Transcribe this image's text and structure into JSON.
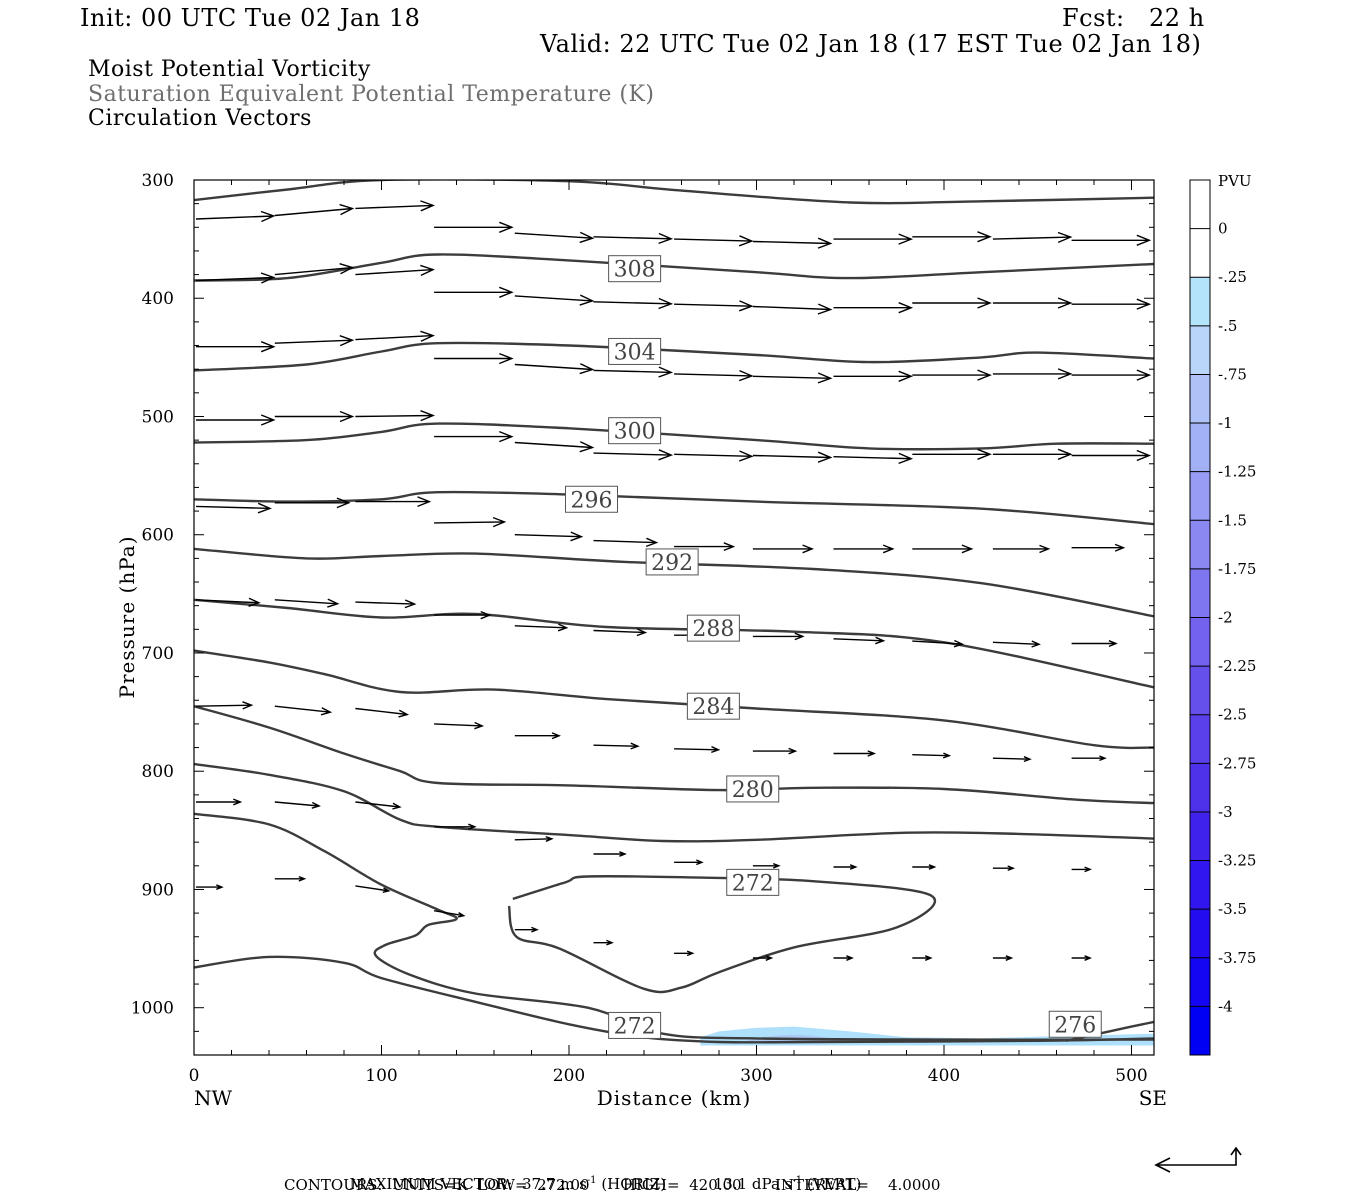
{
  "header": {
    "init": "Init: 00 UTC Tue 02 Jan 18",
    "fcst": "Fcst:   22 h",
    "valid": "Valid: 22 UTC Tue 02 Jan 18 (17 EST Tue 02 Jan 18)"
  },
  "fields": {
    "field1": "Moist Potential Vorticity",
    "field2": "Saturation Equivalent Potential Temperature (K)",
    "field3": "Circulation Vectors"
  },
  "footer": {
    "max_vector_label": "MAXIMUM VECTOR:",
    "max_vector_horiz": "37.7 m s",
    "horiz_note": "(HORIZ)",
    "max_vector_vert": "13.1 dPa s",
    "vert_note": "(VERT)",
    "exp": "-1",
    "contours": "CONTOURS:  UNITS=K  LOW=  272.00       HIGH=  420.00       INTERVAL=    4.0000"
  },
  "colors": {
    "contour": "#3c3c3c",
    "vector": "#000000",
    "pv_shade": "#aee0fb",
    "pv_shade_deep": "#a8b8f0"
  },
  "chart_data": {
    "type": "contour",
    "xlabel": "Distance (km)",
    "ylabel": "Pressure (hPa)",
    "xlim": [
      0,
      512
    ],
    "ylim": [
      1040,
      300
    ],
    "x_ticks": [
      0,
      100,
      200,
      300,
      400,
      500
    ],
    "y_ticks": [
      300,
      400,
      500,
      600,
      700,
      800,
      900,
      1000
    ],
    "x_end_labels": {
      "left": "NW",
      "right": "SE"
    },
    "contour_labels": [
      {
        "value": "308",
        "x": 235,
        "p": 375
      },
      {
        "value": "304",
        "x": 235,
        "p": 445
      },
      {
        "value": "300",
        "x": 235,
        "p": 512
      },
      {
        "value": "296",
        "x": 212,
        "p": 570
      },
      {
        "value": "292",
        "x": 255,
        "p": 623
      },
      {
        "value": "288",
        "x": 277,
        "p": 679
      },
      {
        "value": "284",
        "x": 277,
        "p": 745
      },
      {
        "value": "280",
        "x": 298,
        "p": 815
      },
      {
        "value": "272",
        "x": 298,
        "p": 894
      },
      {
        "value": "272",
        "x": 235,
        "p": 1015
      },
      {
        "value": "276",
        "x": 470,
        "p": 1014
      }
    ],
    "contours": [
      [
        [
          0,
          317
        ],
        [
          50,
          308
        ],
        [
          100,
          300
        ],
        [
          200,
          301
        ],
        [
          260,
          309
        ],
        [
          350,
          319
        ],
        [
          420,
          318
        ],
        [
          512,
          315
        ]
      ],
      [
        [
          0,
          385
        ],
        [
          50,
          383
        ],
        [
          100,
          370
        ],
        [
          130,
          363
        ],
        [
          200,
          368
        ],
        [
          300,
          378
        ],
        [
          350,
          383
        ],
        [
          420,
          378
        ],
        [
          512,
          371
        ]
      ],
      [
        [
          0,
          461
        ],
        [
          60,
          456
        ],
        [
          100,
          445
        ],
        [
          130,
          438
        ],
        [
          200,
          440
        ],
        [
          300,
          448
        ],
        [
          360,
          454
        ],
        [
          420,
          450
        ],
        [
          450,
          446
        ],
        [
          512,
          451
        ]
      ],
      [
        [
          0,
          522
        ],
        [
          60,
          520
        ],
        [
          100,
          513
        ],
        [
          130,
          506
        ],
        [
          200,
          510
        ],
        [
          300,
          520
        ],
        [
          360,
          527
        ],
        [
          420,
          527
        ],
        [
          460,
          523
        ],
        [
          512,
          523
        ]
      ],
      [
        [
          0,
          570
        ],
        [
          50,
          572
        ],
        [
          100,
          570
        ],
        [
          130,
          564
        ],
        [
          200,
          566
        ],
        [
          300,
          572
        ],
        [
          420,
          578
        ],
        [
          512,
          591
        ]
      ],
      [
        [
          0,
          612
        ],
        [
          60,
          620
        ],
        [
          100,
          618
        ],
        [
          150,
          616
        ],
        [
          230,
          623
        ],
        [
          330,
          629
        ],
        [
          420,
          641
        ],
        [
          512,
          669
        ]
      ],
      [
        [
          0,
          655
        ],
        [
          50,
          662
        ],
        [
          100,
          670
        ],
        [
          150,
          667
        ],
        [
          220,
          678
        ],
        [
          320,
          682
        ],
        [
          400,
          691
        ],
        [
          512,
          729
        ]
      ],
      [
        [
          0,
          698
        ],
        [
          40,
          708
        ],
        [
          70,
          718
        ],
        [
          110,
          733
        ],
        [
          160,
          731
        ],
        [
          220,
          739
        ],
        [
          300,
          747
        ],
        [
          400,
          757
        ],
        [
          480,
          778
        ],
        [
          512,
          780
        ]
      ],
      [
        [
          0,
          745
        ],
        [
          40,
          763
        ],
        [
          80,
          785
        ],
        [
          110,
          800
        ],
        [
          130,
          810
        ],
        [
          200,
          812
        ],
        [
          280,
          816
        ],
        [
          330,
          814
        ],
        [
          400,
          815
        ],
        [
          470,
          824
        ],
        [
          512,
          827
        ]
      ],
      [
        [
          0,
          794
        ],
        [
          40,
          803
        ],
        [
          80,
          817
        ],
        [
          110,
          841
        ],
        [
          130,
          847
        ],
        [
          200,
          854
        ],
        [
          250,
          859
        ],
        [
          300,
          858
        ],
        [
          380,
          852
        ],
        [
          440,
          853
        ],
        [
          512,
          857
        ]
      ],
      [
        [
          0,
          836
        ],
        [
          40,
          845
        ],
        [
          70,
          868
        ],
        [
          100,
          896
        ],
        [
          130,
          917
        ],
        [
          140,
          925
        ],
        [
          125,
          930
        ],
        [
          118,
          939
        ],
        [
          102,
          947
        ],
        [
          97,
          956
        ],
        [
          115,
          972
        ],
        [
          150,
          988
        ],
        [
          210,
          1000
        ],
        [
          250,
          1022
        ],
        [
          300,
          1026
        ],
        [
          400,
          1027
        ],
        [
          512,
          1027
        ]
      ],
      [
        [
          170,
          908
        ],
        [
          198,
          894
        ],
        [
          210,
          889
        ],
        [
          270,
          890
        ],
        [
          330,
          893
        ],
        [
          393,
          905
        ],
        [
          375,
          932
        ],
        [
          320,
          949
        ],
        [
          280,
          970
        ],
        [
          260,
          983
        ],
        [
          240,
          984
        ],
        [
          195,
          950
        ],
        [
          172,
          940
        ],
        [
          168,
          914
        ]
      ],
      [
        [
          0,
          966
        ],
        [
          40,
          957
        ],
        [
          80,
          962
        ],
        [
          100,
          975
        ],
        [
          150,
          995
        ],
        [
          200,
          1014
        ],
        [
          240,
          1025
        ],
        [
          280,
          1029
        ],
        [
          330,
          1029
        ],
        [
          450,
          1028
        ],
        [
          512,
          1026
        ]
      ],
      [
        [
          465,
          1028
        ],
        [
          500,
          1016
        ],
        [
          512,
          1012
        ]
      ]
    ],
    "pv_shading": [
      {
        "range": "-0.25 to -0.5",
        "x": [
          270,
          280,
          300,
          320,
          350,
          380,
          420,
          460,
          512
        ],
        "p_top": [
          1025,
          1020,
          1017,
          1016,
          1020,
          1025,
          1026,
          1024,
          1022
        ],
        "p_bottom": 1032
      }
    ],
    "vectors": [
      {
        "x": 0,
        "p": 333,
        "u": 42,
        "w": -3
      },
      {
        "x": 42,
        "p": 330,
        "u": 42,
        "w": -7
      },
      {
        "x": 85,
        "p": 324,
        "u": 42,
        "w": -3
      },
      {
        "x": 127,
        "p": 340,
        "u": 42,
        "w": 0
      },
      {
        "x": 170,
        "p": 345,
        "u": 42,
        "w": 5
      },
      {
        "x": 212,
        "p": 348,
        "u": 42,
        "w": 2
      },
      {
        "x": 255,
        "p": 350,
        "u": 42,
        "w": 2
      },
      {
        "x": 297,
        "p": 352,
        "u": 42,
        "w": 2
      },
      {
        "x": 340,
        "p": 350,
        "u": 42,
        "w": 0
      },
      {
        "x": 382,
        "p": 348,
        "u": 42,
        "w": 0
      },
      {
        "x": 425,
        "p": 350,
        "u": 42,
        "w": -2
      },
      {
        "x": 467,
        "p": 351,
        "u": 42,
        "w": 0
      },
      {
        "x": 0,
        "p": 385,
        "u": 42,
        "w": -3
      },
      {
        "x": 42,
        "p": 380,
        "u": 42,
        "w": -7
      },
      {
        "x": 85,
        "p": 380,
        "u": 42,
        "w": -5
      },
      {
        "x": 127,
        "p": 395,
        "u": 42,
        "w": 0
      },
      {
        "x": 170,
        "p": 398,
        "u": 42,
        "w": 5
      },
      {
        "x": 212,
        "p": 403,
        "u": 42,
        "w": 2
      },
      {
        "x": 255,
        "p": 405,
        "u": 42,
        "w": 2
      },
      {
        "x": 297,
        "p": 407,
        "u": 42,
        "w": 3
      },
      {
        "x": 340,
        "p": 408,
        "u": 42,
        "w": 0
      },
      {
        "x": 382,
        "p": 404,
        "u": 42,
        "w": 0
      },
      {
        "x": 425,
        "p": 404,
        "u": 42,
        "w": 0
      },
      {
        "x": 467,
        "p": 405,
        "u": 42,
        "w": 0
      },
      {
        "x": 0,
        "p": 441,
        "u": 42,
        "w": 0
      },
      {
        "x": 42,
        "p": 438,
        "u": 42,
        "w": -3
      },
      {
        "x": 85,
        "p": 435,
        "u": 42,
        "w": -4
      },
      {
        "x": 127,
        "p": 451,
        "u": 42,
        "w": 0
      },
      {
        "x": 170,
        "p": 456,
        "u": 42,
        "w": 5
      },
      {
        "x": 212,
        "p": 461,
        "u": 42,
        "w": 2
      },
      {
        "x": 255,
        "p": 464,
        "u": 42,
        "w": 2
      },
      {
        "x": 297,
        "p": 466,
        "u": 42,
        "w": 2
      },
      {
        "x": 340,
        "p": 466,
        "u": 42,
        "w": 0
      },
      {
        "x": 382,
        "p": 465,
        "u": 42,
        "w": 0
      },
      {
        "x": 425,
        "p": 464,
        "u": 42,
        "w": 0
      },
      {
        "x": 467,
        "p": 465,
        "u": 42,
        "w": 0
      },
      {
        "x": 0,
        "p": 503,
        "u": 42,
        "w": 0
      },
      {
        "x": 42,
        "p": 500,
        "u": 42,
        "w": 0
      },
      {
        "x": 85,
        "p": 500,
        "u": 42,
        "w": -1
      },
      {
        "x": 127,
        "p": 517,
        "u": 42,
        "w": 0
      },
      {
        "x": 170,
        "p": 522,
        "u": 42,
        "w": 5
      },
      {
        "x": 212,
        "p": 531,
        "u": 42,
        "w": 2
      },
      {
        "x": 255,
        "p": 532,
        "u": 42,
        "w": 2
      },
      {
        "x": 297,
        "p": 533,
        "u": 42,
        "w": 2
      },
      {
        "x": 340,
        "p": 534,
        "u": 42,
        "w": 2
      },
      {
        "x": 382,
        "p": 532,
        "u": 42,
        "w": 0
      },
      {
        "x": 425,
        "p": 532,
        "u": 42,
        "w": 0
      },
      {
        "x": 467,
        "p": 533,
        "u": 42,
        "w": 0
      },
      {
        "x": 0,
        "p": 576,
        "u": 40,
        "w": 2
      },
      {
        "x": 42,
        "p": 573,
        "u": 40,
        "w": 0
      },
      {
        "x": 85,
        "p": 572,
        "u": 40,
        "w": 0
      },
      {
        "x": 127,
        "p": 590,
        "u": 38,
        "w": -1
      },
      {
        "x": 170,
        "p": 600,
        "u": 36,
        "w": 2
      },
      {
        "x": 212,
        "p": 605,
        "u": 34,
        "w": 2
      },
      {
        "x": 255,
        "p": 610,
        "u": 32,
        "w": 0
      },
      {
        "x": 297,
        "p": 612,
        "u": 32,
        "w": 0
      },
      {
        "x": 340,
        "p": 612,
        "u": 32,
        "w": 0
      },
      {
        "x": 382,
        "p": 612,
        "u": 32,
        "w": 0
      },
      {
        "x": 425,
        "p": 612,
        "u": 30,
        "w": 0
      },
      {
        "x": 467,
        "p": 611,
        "u": 28,
        "w": 0
      },
      {
        "x": 0,
        "p": 655,
        "u": 34,
        "w": 3
      },
      {
        "x": 42,
        "p": 655,
        "u": 34,
        "w": 4
      },
      {
        "x": 85,
        "p": 657,
        "u": 32,
        "w": 2
      },
      {
        "x": 127,
        "p": 668,
        "u": 30,
        "w": 0
      },
      {
        "x": 170,
        "p": 677,
        "u": 28,
        "w": 2
      },
      {
        "x": 212,
        "p": 681,
        "u": 28,
        "w": 2
      },
      {
        "x": 255,
        "p": 685,
        "u": 27,
        "w": 0
      },
      {
        "x": 297,
        "p": 686,
        "u": 27,
        "w": 0
      },
      {
        "x": 340,
        "p": 688,
        "u": 27,
        "w": 2
      },
      {
        "x": 382,
        "p": 690,
        "u": 27,
        "w": 3
      },
      {
        "x": 425,
        "p": 691,
        "u": 25,
        "w": 2
      },
      {
        "x": 467,
        "p": 692,
        "u": 24,
        "w": 0
      },
      {
        "x": 0,
        "p": 745,
        "u": 30,
        "w": -1
      },
      {
        "x": 42,
        "p": 745,
        "u": 30,
        "w": 6
      },
      {
        "x": 85,
        "p": 747,
        "u": 28,
        "w": 6
      },
      {
        "x": 127,
        "p": 760,
        "u": 26,
        "w": 2
      },
      {
        "x": 170,
        "p": 770,
        "u": 24,
        "w": 0
      },
      {
        "x": 212,
        "p": 778,
        "u": 24,
        "w": 1
      },
      {
        "x": 255,
        "p": 781,
        "u": 24,
        "w": 1
      },
      {
        "x": 297,
        "p": 783,
        "u": 23,
        "w": 0
      },
      {
        "x": 340,
        "p": 785,
        "u": 22,
        "w": 0
      },
      {
        "x": 382,
        "p": 786,
        "u": 20,
        "w": 1
      },
      {
        "x": 425,
        "p": 789,
        "u": 20,
        "w": 1
      },
      {
        "x": 467,
        "p": 789,
        "u": 18,
        "w": 0
      },
      {
        "x": 0,
        "p": 826,
        "u": 24,
        "w": 0
      },
      {
        "x": 42,
        "p": 826,
        "u": 24,
        "w": 4
      },
      {
        "x": 85,
        "p": 826,
        "u": 24,
        "w": 5
      },
      {
        "x": 127,
        "p": 847,
        "u": 22,
        "w": 0
      },
      {
        "x": 170,
        "p": 858,
        "u": 20,
        "w": -1
      },
      {
        "x": 212,
        "p": 870,
        "u": 17,
        "w": 0
      },
      {
        "x": 255,
        "p": 877,
        "u": 15,
        "w": 0
      },
      {
        "x": 297,
        "p": 880,
        "u": 14,
        "w": 0
      },
      {
        "x": 340,
        "p": 881,
        "u": 12,
        "w": 0
      },
      {
        "x": 382,
        "p": 881,
        "u": 12,
        "w": 0
      },
      {
        "x": 425,
        "p": 882,
        "u": 11,
        "w": 0
      },
      {
        "x": 467,
        "p": 883,
        "u": 10,
        "w": 0
      },
      {
        "x": 0,
        "p": 898,
        "u": 14,
        "w": 0
      },
      {
        "x": 42,
        "p": 891,
        "u": 16,
        "w": 0
      },
      {
        "x": 85,
        "p": 897,
        "u": 18,
        "w": 5
      },
      {
        "x": 127,
        "p": 918,
        "u": 16,
        "w": 5
      },
      {
        "x": 170,
        "p": 934,
        "u": 12,
        "w": 0
      },
      {
        "x": 212,
        "p": 945,
        "u": 10,
        "w": 0
      },
      {
        "x": 255,
        "p": 954,
        "u": 10,
        "w": 0
      },
      {
        "x": 297,
        "p": 958,
        "u": 10,
        "w": 0
      },
      {
        "x": 340,
        "p": 958,
        "u": 10,
        "w": 0
      },
      {
        "x": 382,
        "p": 958,
        "u": 10,
        "w": 0
      },
      {
        "x": 425,
        "p": 958,
        "u": 10,
        "w": 0
      },
      {
        "x": 467,
        "p": 958,
        "u": 10,
        "w": 0
      }
    ]
  },
  "colorbar": {
    "title": "PVU",
    "labels": [
      "0",
      "-.25",
      "-.5",
      "-.75",
      "-1",
      "-1.25",
      "-1.5",
      "-1.75",
      "-2",
      "-2.25",
      "-2.5",
      "-2.75",
      "-3",
      "-3.25",
      "-3.5",
      "-3.75",
      "-4"
    ],
    "colors": [
      "#ffffff",
      "#ffffff",
      "#b4e4fa",
      "#bad5fa",
      "#aec2f8",
      "#a2b0f6",
      "#989cf4",
      "#8b88f2",
      "#7e75f0",
      "#7362ee",
      "#6650ec",
      "#5a40ea",
      "#4d32ea",
      "#3f23ec",
      "#3116ee",
      "#230cf0",
      "#1405f3",
      "#0000f5"
    ]
  }
}
